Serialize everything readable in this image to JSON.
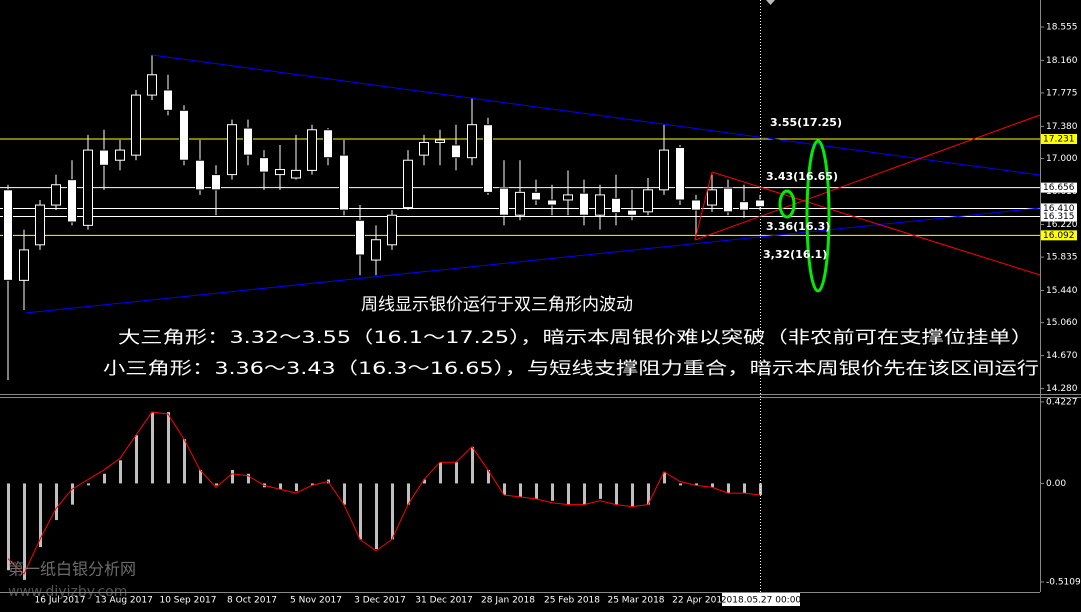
{
  "chart_data": [
    {
      "type": "candlestick",
      "categories": [
        null,
        null,
        null,
        "16 Jul 2017",
        null,
        null,
        null,
        "13 Aug 2017",
        null,
        null,
        null,
        "10 Sep 2017",
        null,
        null,
        null,
        "8 Oct 2017",
        null,
        null,
        null,
        "5 Nov 2017",
        null,
        null,
        null,
        "3 Dec 2017",
        null,
        null,
        null,
        "31 Dec 2017",
        null,
        null,
        null,
        "28 Jan 2018",
        null,
        null,
        null,
        "25 Feb 2018",
        null,
        null,
        null,
        "25 Mar 2018",
        null,
        null,
        null,
        "22 Apr 2018",
        null,
        null,
        null,
        null
      ],
      "open": [
        16.63,
        15.56,
        15.98,
        16.45,
        16.75,
        16.21,
        17.1,
        16.98,
        17.04,
        17.75,
        17.81,
        17.57,
        16.98,
        16.81,
        16.81,
        17.36,
        17.01,
        16.81,
        16.77,
        16.86,
        17.34,
        17.04,
        16.27,
        15.8,
        15.98,
        16.42,
        17.04,
        17.19,
        17.16,
        17.01,
        17.4,
        16.65,
        16.33,
        16.6,
        16.51,
        16.51,
        16.59,
        16.33,
        16.53,
        16.39,
        16.37,
        16.63,
        17.13,
        16.51,
        16.45,
        16.65,
        16.49,
        16.51
      ],
      "high": [
        16.69,
        16.16,
        16.51,
        16.81,
        16.98,
        17.28,
        17.34,
        17.22,
        17.81,
        18.22,
        17.99,
        17.63,
        17.22,
        16.92,
        17.46,
        17.46,
        17.1,
        17.16,
        17.28,
        17.4,
        17.36,
        17.22,
        16.45,
        16.21,
        16.39,
        17.1,
        17.28,
        17.34,
        17.4,
        17.72,
        17.48,
        16.98,
        16.98,
        16.75,
        16.69,
        16.86,
        16.75,
        16.69,
        16.81,
        16.63,
        16.77,
        17.4,
        17.16,
        16.57,
        16.81,
        16.75,
        16.69,
        16.57
      ],
      "low": [
        14.38,
        15.21,
        15.92,
        16.39,
        16.21,
        16.16,
        16.63,
        16.86,
        16.98,
        17.69,
        17.51,
        16.92,
        16.57,
        16.33,
        16.75,
        16.92,
        16.63,
        16.63,
        16.75,
        16.81,
        16.92,
        16.33,
        15.62,
        15.62,
        15.92,
        16.39,
        16.92,
        16.92,
        16.86,
        16.92,
        16.57,
        16.21,
        16.27,
        16.45,
        16.33,
        16.33,
        16.21,
        16.16,
        16.21,
        16.27,
        16.33,
        16.57,
        16.45,
        16.1,
        16.37,
        16.33,
        16.3,
        16.39
      ],
      "close": [
        15.56,
        15.92,
        16.45,
        16.69,
        16.25,
        17.1,
        16.92,
        17.1,
        17.75,
        17.99,
        17.57,
        16.98,
        16.63,
        16.63,
        17.4,
        17.04,
        16.84,
        16.87,
        16.86,
        17.34,
        17.01,
        16.39,
        15.86,
        16.04,
        16.33,
        16.98,
        17.19,
        17.22,
        17.01,
        17.4,
        16.6,
        16.33,
        16.6,
        16.51,
        16.45,
        16.57,
        16.33,
        16.57,
        16.36,
        16.33,
        16.63,
        17.1,
        16.51,
        16.39,
        16.63,
        16.37,
        16.39,
        16.43
      ],
      "up_color": "#000000",
      "down_color": "#ffffff",
      "ylim": [
        14.22,
        18.874
      ],
      "yticks": [
        18.555,
        {
          "value": 18.16,
          "label": "18.160"
        },
        17.775,
        {
          "value": 17.38,
          "label": "17.380"
        },
        {
          "value": 17,
          "label": "17.000"
        },
        {
          "value": 16.61,
          "label": "16.610"
        },
        {
          "value": 16.22,
          "label": "16.220"
        },
        15.835,
        {
          "value": 15.44,
          "label": "15.440"
        },
        {
          "value": 15.06,
          "label": "15.060"
        },
        {
          "value": 14.67,
          "label": "14.670"
        },
        {
          "value": 14.28,
          "label": "14.280"
        }
      ],
      "levels": [
        {
          "value": 17.231,
          "color": "#ffff00"
        },
        {
          "value": 16.656,
          "color": "#ffffff"
        },
        {
          "value": 16.41,
          "label": "16.410",
          "color": "#ffffff"
        },
        {
          "value": 16.315,
          "color": "#ffffff"
        },
        {
          "value": 16.092,
          "color": "#ffff00"
        }
      ],
      "annotations": [
        "3.55(17.25)",
        "3.43(16.65)",
        "3.36(16.3)",
        "3,32(16.1)"
      ],
      "texts": [
        "周线显示银价运行于双三角形内波动",
        "大三角形：3.32～3.55（16.1～17.25），暗示本周银价难以突破（非农前可在支撑位挂单）",
        "小三角形：3.36～3.43（16.3～16.65），与短线支撑阻力重合，暗示本周银价先在该区间运行"
      ],
      "cursor_label": "2018.05.27 00:00"
    },
    {
      "type": "histogram-line",
      "values": [
        -0.45,
        -0.5,
        -0.33,
        -0.19,
        -0.11,
        -0.01,
        0.05,
        0.12,
        0.25,
        0.37,
        0.37,
        0.23,
        0.07,
        -0.01,
        0.07,
        0.05,
        -0.02,
        -0.03,
        -0.04,
        -0.01,
        0.02,
        -0.11,
        -0.29,
        -0.34,
        -0.29,
        -0.11,
        0.02,
        0.11,
        0.11,
        0.19,
        0.07,
        -0.06,
        -0.07,
        -0.08,
        -0.09,
        -0.11,
        -0.11,
        -0.08,
        -0.11,
        -0.12,
        -0.11,
        0.06,
        -0.01,
        -0.01,
        -0.02,
        -0.05,
        -0.05,
        -0.06
      ],
      "color": "#c0c0c0",
      "line": [
        -0.39,
        -0.47,
        -0.29,
        -0.13,
        -0.03,
        0.02,
        0.07,
        0.13,
        0.25,
        0.37,
        0.36,
        0.23,
        0.07,
        -0.02,
        0.05,
        0.04,
        -0.01,
        -0.03,
        -0.05,
        -0.01,
        0.01,
        -0.11,
        -0.29,
        -0.35,
        -0.29,
        -0.11,
        0.02,
        0.11,
        0.11,
        0.19,
        0.07,
        -0.06,
        -0.07,
        -0.08,
        -0.1,
        -0.11,
        -0.11,
        -0.09,
        -0.11,
        -0.12,
        -0.11,
        0.06,
        0.01,
        -0.01,
        -0.02,
        -0.05,
        -0.05,
        -0.06
      ],
      "line_color": "#ff0000",
      "ylim": [
        -0.563,
        0.443
      ],
      "yticks": [
        0.4227,
        {
          "value": 0,
          "label": "0.00"
        },
        -0.5109
      ]
    },
    {
      "watermark": [
        "第一纸白银分析网",
        "www.diyizby.com"
      ]
    }
  ]
}
